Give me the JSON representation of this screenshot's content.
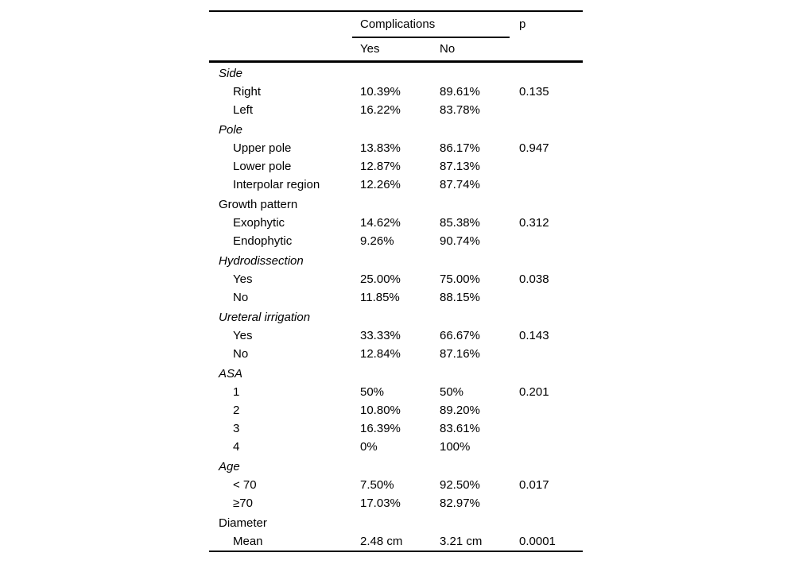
{
  "table": {
    "header": {
      "group": "Complications",
      "yes": "Yes",
      "no": "No",
      "p": "p"
    },
    "sections": [
      {
        "label": "Side",
        "italic": true,
        "rows": [
          {
            "label": "Right",
            "yes": "10.39%",
            "no": "89.61%",
            "p": "0.135"
          },
          {
            "label": "Left",
            "yes": "16.22%",
            "no": "83.78%",
            "p": ""
          }
        ]
      },
      {
        "label": "Pole",
        "italic": true,
        "rows": [
          {
            "label": "Upper pole",
            "yes": "13.83%",
            "no": "86.17%",
            "p": "0.947"
          },
          {
            "label": "Lower pole",
            "yes": "12.87%",
            "no": "87.13%",
            "p": ""
          },
          {
            "label": "Interpolar region",
            "yes": "12.26%",
            "no": "87.74%",
            "p": ""
          }
        ]
      },
      {
        "label": "Growth pattern",
        "italic": false,
        "rows": [
          {
            "label": "Exophytic",
            "yes": "14.62%",
            "no": "85.38%",
            "p": "0.312"
          },
          {
            "label": "Endophytic",
            "yes": "9.26%",
            "no": "90.74%",
            "p": ""
          }
        ]
      },
      {
        "label": "Hydrodissection",
        "italic": true,
        "rows": [
          {
            "label": "Yes",
            "yes": "25.00%",
            "no": "75.00%",
            "p": "0.038"
          },
          {
            "label": "No",
            "yes": "11.85%",
            "no": "88.15%",
            "p": ""
          }
        ]
      },
      {
        "label": "Ureteral irrigation",
        "italic": true,
        "rows": [
          {
            "label": "Yes",
            "yes": "33.33%",
            "no": "66.67%",
            "p": "0.143"
          },
          {
            "label": "No",
            "yes": "12.84%",
            "no": "87.16%",
            "p": ""
          }
        ]
      },
      {
        "label": "ASA",
        "italic": true,
        "rows": [
          {
            "label": "1",
            "yes": "50%",
            "no": "50%",
            "p": "0.201"
          },
          {
            "label": "2",
            "yes": "10.80%",
            "no": "89.20%",
            "p": ""
          },
          {
            "label": "3",
            "yes": "16.39%",
            "no": "83.61%",
            "p": ""
          },
          {
            "label": "4",
            "yes": "0%",
            "no": "100%",
            "p": ""
          }
        ]
      },
      {
        "label": "Age",
        "italic": true,
        "rows": [
          {
            "label": "< 70",
            "yes": "7.50%",
            "no": "92.50%",
            "p": "0.017"
          },
          {
            "label": "≥70",
            "yes": "17.03%",
            "no": "82.97%",
            "p": ""
          }
        ]
      },
      {
        "label": "Diameter",
        "italic": false,
        "rows": [
          {
            "label": "Mean",
            "yes": "2.48 cm",
            "no": "3.21 cm",
            "p": "0.0001"
          }
        ]
      }
    ]
  },
  "colors": {
    "text": "#000000",
    "background": "#ffffff",
    "rule": "#000000"
  }
}
